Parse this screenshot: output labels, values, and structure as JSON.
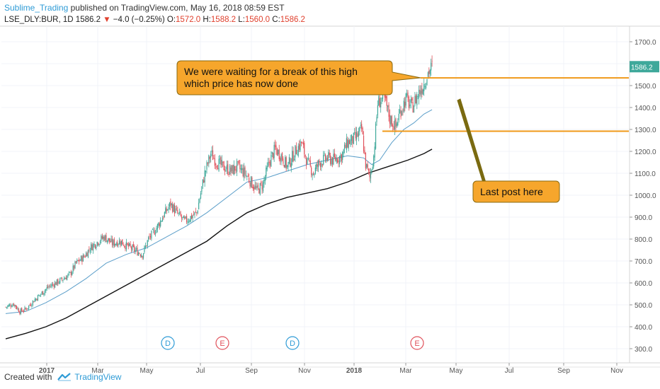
{
  "header": {
    "author": "Sublime_Trading",
    "published": "published on TradingView.com, May 16, 2018 08:59 EST"
  },
  "symbol_line": {
    "symbol": "LSE_DLY:BUR, 1D",
    "last": "1586.2",
    "change": "−4.0 (−0.25%)",
    "open_label": "O:",
    "open": "1572.0",
    "high_label": "H:",
    "high": "1588.2",
    "low_label": "L:",
    "low": "1560.0",
    "close_label": "C:",
    "close": "1586.2"
  },
  "footer": {
    "created_with": "Created with",
    "brand": "TradingView"
  },
  "colors": {
    "up": "#3ea89a",
    "down": "#e0515b",
    "ma50": "#5b9ec9",
    "ma200": "#111111",
    "level": "#f09a1a",
    "callout_fill": "#f6a62c",
    "callout_border": "#8a6a10",
    "arrow": "#7a6a10",
    "event_d": "#2e9bd6",
    "event_e": "#e0515b",
    "price_tag": "#3ea89a"
  },
  "chart_data": {
    "type": "candlestick",
    "y_ticks": [
      "1700.0",
      "1600.0",
      "1500.0",
      "1400.0",
      "1300.0",
      "1200.0",
      "1100.0",
      "1000.0",
      "900.0",
      "800.0",
      "700.0",
      "600.0",
      "500.0",
      "400.0",
      "300.0"
    ],
    "y_tick_values": [
      1700,
      1600,
      1500,
      1400,
      1300,
      1200,
      1100,
      1000,
      900,
      800,
      700,
      600,
      500,
      400,
      300
    ],
    "ylim": [
      280,
      1750
    ],
    "x_ticks": [
      "2017",
      "Mar",
      "May",
      "Jul",
      "Sep",
      "Nov",
      "2018",
      "Mar",
      "May",
      "Jul",
      "Sep",
      "Nov"
    ],
    "x_tick_bold": [
      "2017",
      "2018"
    ],
    "last_price": "1586.2",
    "levels": [
      1535,
      1292
    ],
    "events": [
      {
        "label": "D",
        "kind": "dividend"
      },
      {
        "label": "E",
        "kind": "earnings"
      },
      {
        "label": "D",
        "kind": "dividend"
      },
      {
        "label": "E",
        "kind": "earnings"
      }
    ],
    "callouts": [
      {
        "text": [
          "We were waiting for a break of this high",
          "which price has now done"
        ]
      },
      {
        "text": [
          "Last post here"
        ]
      }
    ],
    "series": [
      {
        "name": "",
        "kind": "ohlc",
        "close_path": [
          [
            0,
            490
          ],
          [
            8,
            505
          ],
          [
            14,
            470
          ],
          [
            20,
            480
          ],
          [
            28,
            520
          ],
          [
            34,
            545
          ],
          [
            42,
            580
          ],
          [
            50,
            600
          ],
          [
            56,
            615
          ],
          [
            64,
            640
          ],
          [
            70,
            690
          ],
          [
            78,
            720
          ],
          [
            84,
            760
          ],
          [
            92,
            790
          ],
          [
            98,
            810
          ],
          [
            106,
            780
          ],
          [
            114,
            790
          ],
          [
            120,
            770
          ],
          [
            128,
            750
          ],
          [
            136,
            730
          ],
          [
            142,
            800
          ],
          [
            150,
            850
          ],
          [
            156,
            900
          ],
          [
            164,
            960
          ],
          [
            170,
            920
          ],
          [
            178,
            880
          ],
          [
            184,
            900
          ],
          [
            190,
            920
          ],
          [
            198,
            1100
          ],
          [
            204,
            1190
          ],
          [
            210,
            1150
          ],
          [
            216,
            1130
          ],
          [
            224,
            1110
          ],
          [
            230,
            1130
          ],
          [
            238,
            1100
          ],
          [
            244,
            1060
          ],
          [
            250,
            1020
          ],
          [
            256,
            1050
          ],
          [
            262,
            1150
          ],
          [
            268,
            1210
          ],
          [
            274,
            1180
          ],
          [
            280,
            1130
          ],
          [
            288,
            1200
          ],
          [
            294,
            1240
          ],
          [
            300,
            1150
          ],
          [
            306,
            1100
          ],
          [
            312,
            1150
          ],
          [
            320,
            1170
          ],
          [
            326,
            1160
          ],
          [
            334,
            1180
          ],
          [
            340,
            1240
          ],
          [
            348,
            1260
          ],
          [
            354,
            1300
          ],
          [
            358,
            1140
          ],
          [
            362,
            1080
          ],
          [
            366,
            1180
          ],
          [
            370,
            1420
          ],
          [
            376,
            1450
          ],
          [
            382,
            1350
          ],
          [
            388,
            1310
          ],
          [
            392,
            1380
          ],
          [
            398,
            1440
          ],
          [
            404,
            1400
          ],
          [
            410,
            1460
          ],
          [
            416,
            1510
          ],
          [
            420,
            1560
          ],
          [
            424,
            1586
          ]
        ]
      },
      {
        "name": "",
        "kind": "ma50",
        "path": [
          [
            0,
            460
          ],
          [
            20,
            470
          ],
          [
            40,
            510
          ],
          [
            60,
            560
          ],
          [
            80,
            620
          ],
          [
            100,
            690
          ],
          [
            120,
            730
          ],
          [
            140,
            760
          ],
          [
            160,
            810
          ],
          [
            180,
            860
          ],
          [
            200,
            920
          ],
          [
            220,
            990
          ],
          [
            240,
            1060
          ],
          [
            260,
            1080
          ],
          [
            280,
            1110
          ],
          [
            300,
            1140
          ],
          [
            320,
            1160
          ],
          [
            340,
            1180
          ],
          [
            356,
            1170
          ],
          [
            364,
            1140
          ],
          [
            372,
            1160
          ],
          [
            384,
            1240
          ],
          [
            396,
            1300
          ],
          [
            406,
            1330
          ],
          [
            416,
            1370
          ],
          [
            424,
            1390
          ]
        ]
      },
      {
        "name": "",
        "kind": "ma200",
        "path": [
          [
            0,
            345
          ],
          [
            20,
            370
          ],
          [
            40,
            400
          ],
          [
            60,
            440
          ],
          [
            80,
            490
          ],
          [
            100,
            540
          ],
          [
            120,
            590
          ],
          [
            140,
            640
          ],
          [
            160,
            690
          ],
          [
            180,
            740
          ],
          [
            200,
            790
          ],
          [
            220,
            860
          ],
          [
            240,
            920
          ],
          [
            260,
            960
          ],
          [
            280,
            990
          ],
          [
            300,
            1010
          ],
          [
            320,
            1030
          ],
          [
            340,
            1060
          ],
          [
            360,
            1100
          ],
          [
            380,
            1130
          ],
          [
            400,
            1160
          ],
          [
            416,
            1190
          ],
          [
            424,
            1210
          ]
        ]
      }
    ]
  }
}
